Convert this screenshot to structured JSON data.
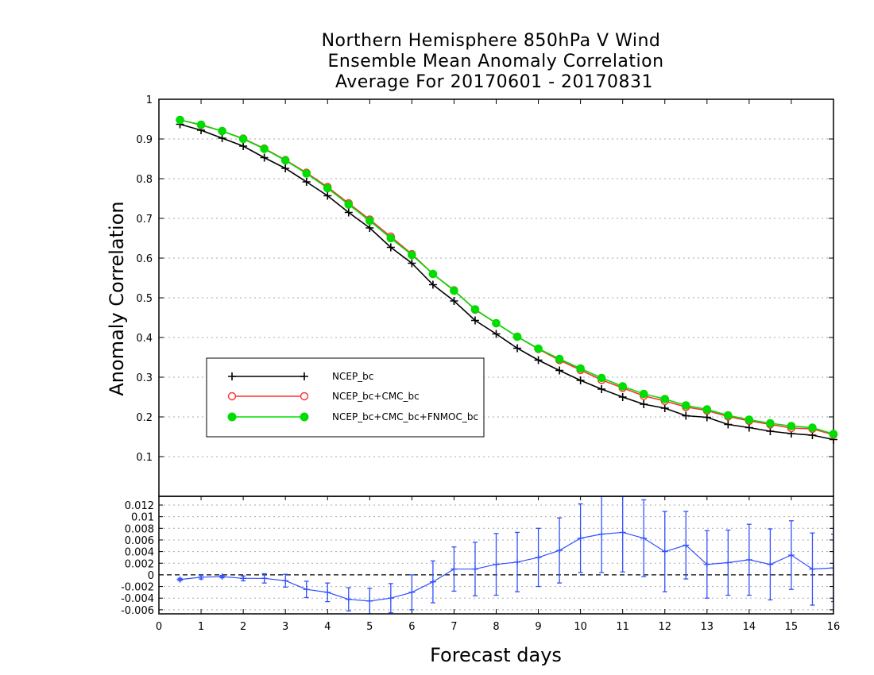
{
  "title_lines": [
    "Northern Hemisphere 850hPa V Wind",
    "Ensemble Mean Anomaly Correlation",
    "Average For 20170601 - 20170831"
  ],
  "colors": {
    "ncep": "#000000",
    "ncep_cmc": "#ff3030",
    "ncep_cmc_fnmoc": "#00dd00",
    "diff": "#3050ff"
  },
  "chart_data": [
    {
      "type": "line",
      "xlabel": "Forecast days",
      "ylabel": "Anomaly Correlation",
      "ylim": [
        0,
        1
      ],
      "xlim": [
        0,
        16
      ],
      "grid": true,
      "legend_position": "left",
      "y_ticks": [
        "0.1",
        "0.2",
        "0.3",
        "0.4",
        "0.5",
        "0.6",
        "0.7",
        "0.8",
        "0.9",
        "1"
      ],
      "x": [
        0.5,
        1,
        1.5,
        2,
        2.5,
        3,
        3.5,
        4,
        4.5,
        5,
        5.5,
        6,
        6.5,
        7,
        7.5,
        8,
        8.5,
        9,
        9.5,
        10,
        10.5,
        11,
        11.5,
        12,
        12.5,
        13,
        13.5,
        14,
        14.5,
        15,
        15.5,
        16
      ],
      "series": [
        {
          "name": "NCEP_bc",
          "marker": "plus",
          "values": [
            0.937,
            0.922,
            0.902,
            0.882,
            0.853,
            0.826,
            0.792,
            0.757,
            0.715,
            0.676,
            0.627,
            0.587,
            0.533,
            0.492,
            0.443,
            0.409,
            0.373,
            0.343,
            0.317,
            0.292,
            0.27,
            0.25,
            0.232,
            0.222,
            0.203,
            0.199,
            0.181,
            0.173,
            0.164,
            0.158,
            0.154,
            0.143
          ]
        },
        {
          "name": "NCEP_bc+CMC_bc",
          "marker": "open-circle",
          "values": [
            0.948,
            0.935,
            0.92,
            0.901,
            0.876,
            0.847,
            0.815,
            0.779,
            0.738,
            0.697,
            0.654,
            0.61,
            0.56,
            0.519,
            0.47,
            0.436,
            0.402,
            0.371,
            0.343,
            0.318,
            0.293,
            0.273,
            0.253,
            0.24,
            0.225,
            0.216,
            0.201,
            0.19,
            0.181,
            0.172,
            0.17,
            0.155
          ]
        },
        {
          "name": "NCEP_bc+CMC_bc+FNMOC_bc",
          "marker": "filled-circle",
          "values": [
            0.948,
            0.936,
            0.92,
            0.9,
            0.875,
            0.846,
            0.813,
            0.776,
            0.735,
            0.694,
            0.65,
            0.608,
            0.56,
            0.518,
            0.471,
            0.436,
            0.402,
            0.372,
            0.346,
            0.322,
            0.298,
            0.277,
            0.258,
            0.245,
            0.229,
            0.219,
            0.204,
            0.193,
            0.184,
            0.177,
            0.173,
            0.157
          ]
        }
      ]
    },
    {
      "type": "line",
      "xlabel": "Forecast days",
      "ylim": [
        -0.0067,
        0.0135
      ],
      "xlim": [
        0,
        16
      ],
      "grid": true,
      "y_ticks": [
        "0.012",
        "0.01",
        "0.008",
        "0.006",
        "0.004",
        "0.002",
        "0",
        "-0.002",
        "-0.004",
        "-0.006"
      ],
      "x_ticks": [
        "0",
        "1",
        "2",
        "3",
        "4",
        "5",
        "6",
        "7",
        "8",
        "9",
        "10",
        "11",
        "12",
        "13",
        "14",
        "15",
        "16"
      ],
      "x": [
        0.5,
        1,
        1.5,
        2,
        2.5,
        3,
        3.5,
        4,
        4.5,
        5,
        5.5,
        6,
        6.5,
        7,
        7.5,
        8,
        8.5,
        9,
        9.5,
        10,
        10.5,
        11,
        11.5,
        12,
        12.5,
        13,
        13.5,
        14,
        14.5,
        15,
        15.5,
        16
      ],
      "series": [
        {
          "marker": "plus-with-error-bars",
          "values": [
            -0.0008,
            -0.0004,
            -0.0003,
            -0.0006,
            -0.0006,
            -0.001,
            -0.0025,
            -0.003,
            -0.0042,
            -0.0045,
            -0.004,
            -0.003,
            -0.0012,
            0.001,
            0.001,
            0.0018,
            0.0022,
            0.003,
            0.0042,
            0.0063,
            0.007,
            0.0073,
            0.0063,
            0.004,
            0.0051,
            0.0018,
            0.0021,
            0.0026,
            0.0018,
            0.0034,
            0.001,
            0.0012
          ],
          "error": [
            0.0002,
            0.0003,
            0.0002,
            0.0004,
            0.0008,
            0.0011,
            0.0014,
            0.0016,
            0.002,
            0.0022,
            0.0025,
            0.003,
            0.0036,
            0.0038,
            0.0046,
            0.0053,
            0.0051,
            0.005,
            0.0056,
            0.0059,
            0.0066,
            0.0068,
            0.0066,
            0.0069,
            0.0058,
            0.0058,
            0.0056,
            0.0061,
            0.0061,
            0.0059,
            0.0062,
            0.0058
          ]
        }
      ]
    }
  ]
}
